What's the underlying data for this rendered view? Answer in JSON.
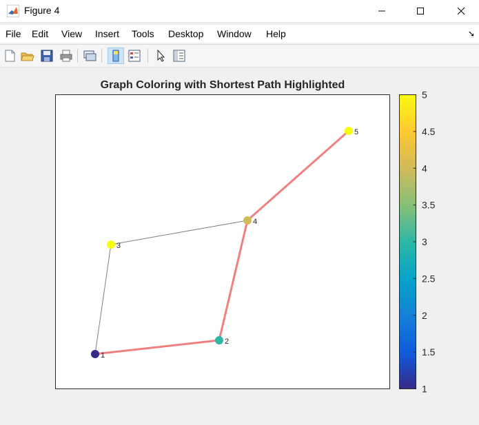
{
  "window": {
    "title": "Figure 4"
  },
  "menu": [
    "File",
    "Edit",
    "View",
    "Insert",
    "Tools",
    "Desktop",
    "Window",
    "Help"
  ],
  "figure": {
    "title": "Graph Coloring with Shortest Path Highlighted"
  },
  "colors": {
    "shortest_path": "#f08080",
    "edge": "#808080",
    "colormap": "parula"
  },
  "chart_data": {
    "type": "graph",
    "title": "Graph Coloring with Shortest Path Highlighted",
    "nodes": [
      {
        "label": "1",
        "color_value": 1
      },
      {
        "label": "2",
        "color_value": 3
      },
      {
        "label": "3",
        "color_value": 5
      },
      {
        "label": "4",
        "color_value": 4
      },
      {
        "label": "5",
        "color_value": 5
      }
    ],
    "edges": [
      {
        "from": "1",
        "to": "2",
        "highlighted": true
      },
      {
        "from": "2",
        "to": "4",
        "highlighted": true
      },
      {
        "from": "4",
        "to": "5",
        "highlighted": true
      },
      {
        "from": "1",
        "to": "3",
        "highlighted": false
      },
      {
        "from": "3",
        "to": "4",
        "highlighted": false
      }
    ],
    "colorbar": {
      "range": [
        1,
        5
      ],
      "ticks": [
        "1",
        "1.5",
        "2",
        "2.5",
        "3",
        "3.5",
        "4",
        "4.5",
        "5"
      ]
    }
  }
}
